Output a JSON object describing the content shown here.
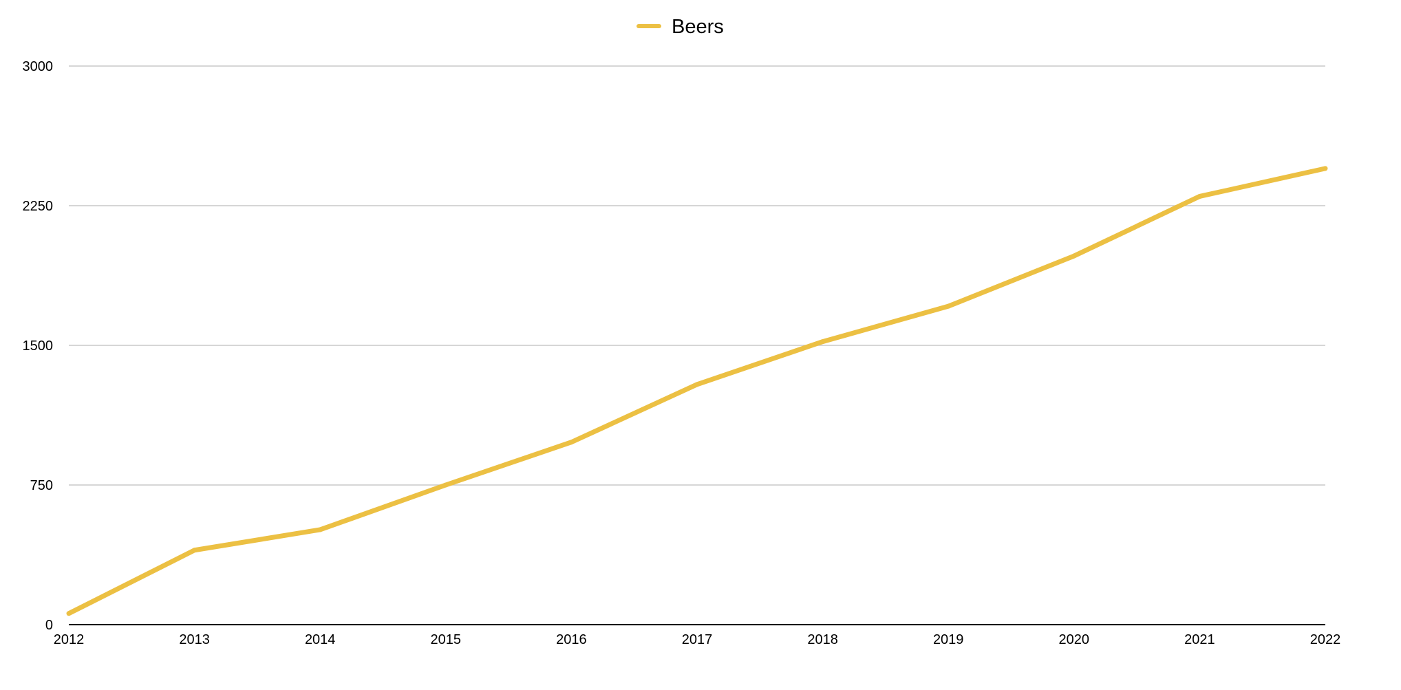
{
  "chart_data": {
    "type": "line",
    "title": "",
    "xlabel": "",
    "ylabel": "",
    "categories": [
      "2012",
      "2013",
      "2014",
      "2015",
      "2016",
      "2017",
      "2018",
      "2019",
      "2020",
      "2021",
      "2022"
    ],
    "series": [
      {
        "name": "Beers",
        "color": "#ecc043",
        "values": [
          60,
          400,
          510,
          750,
          980,
          1290,
          1520,
          1710,
          1980,
          2300,
          2450
        ]
      }
    ],
    "ylim": [
      0,
      3000
    ],
    "yticks": [
      "0",
      "750",
      "1500",
      "2250",
      "3000"
    ],
    "grid": true,
    "legend_position": "top-center"
  }
}
